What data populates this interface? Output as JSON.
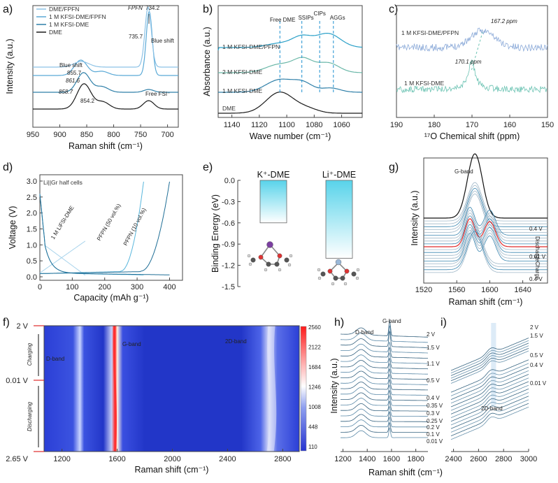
{
  "colors": {
    "dme_fpfn": "#8cc2e6",
    "kfsi_dme_fpfn": "#5aa9d6",
    "kfsi_dme": "#2e7fa8",
    "dme": "#1a1a1a",
    "axis": "#444444",
    "dashed": "#1e90d0",
    "nmr_top": "#8aa9d8",
    "nmr_bottom": "#6cc3b3",
    "red_mark": "#e02a2a",
    "cyan_box": "#58d3ea"
  },
  "panels": {
    "a": {
      "label": "a)"
    },
    "b": {
      "label": "b)"
    },
    "c": {
      "label": "c)"
    },
    "d": {
      "label": "d)"
    },
    "e": {
      "label": "e)"
    },
    "f": {
      "label": "f)"
    },
    "g": {
      "label": "g)"
    },
    "h": {
      "label": "h)"
    },
    "i": {
      "label": "i)"
    }
  },
  "chart_data": [
    {
      "panel": "a",
      "type": "line",
      "xlabel": "Raman shift (cm⁻¹)",
      "ylabel": "Intensity (a.u.)",
      "xlim": [
        950,
        680
      ],
      "xticks": [
        "950",
        "900",
        "850",
        "800",
        "750",
        "700"
      ],
      "series": [
        {
          "name": "DME/FPFN",
          "peaks": [
            735.7
          ]
        },
        {
          "name": "1 M KFSI-DME/FPFN",
          "peaks": [
            861.6,
            734.2
          ]
        },
        {
          "name": "1 M KFSI-DME",
          "peaks": [
            855.7
          ]
        },
        {
          "name": "DME",
          "peaks": [
            858.7,
            854.2
          ]
        }
      ],
      "annotations": [
        "FPFN",
        "734.2",
        "735.7",
        "Blue shift",
        "Blue shift",
        "855.7",
        "861.6",
        "858.7",
        "854.2",
        "Free FSI⁻"
      ]
    },
    {
      "panel": "b",
      "type": "line",
      "xlabel": "Wave number (cm⁻¹)",
      "ylabel": "Absorbance (a.u.)",
      "xlim": [
        1150,
        1045
      ],
      "xticks": [
        "1140",
        "1120",
        "1100",
        "1080",
        "1060"
      ],
      "series": [
        {
          "name": "1 M KFSI-DME/PFPN"
        },
        {
          "name": "2 M KFSI-DME"
        },
        {
          "name": "1 M KFSI-DME"
        },
        {
          "name": "DME"
        }
      ],
      "annotations": [
        "Free DME",
        "SSIPs",
        "CIPs",
        "AGGs"
      ],
      "dashed_x": [
        1105,
        1089,
        1076,
        1066
      ]
    },
    {
      "panel": "c",
      "type": "line",
      "xlabel": "¹⁷O Chemical shift (ppm)",
      "xlim": [
        190,
        150
      ],
      "xticks": [
        "190",
        "180",
        "170",
        "160",
        "150"
      ],
      "series": [
        {
          "name": "1 M KFSI-DME/PFPN",
          "peak": 167.2
        },
        {
          "name": "1 M KFSI-DME",
          "peak": 170.1
        }
      ],
      "annotations": [
        "167.2 ppm",
        "170.1 ppm"
      ]
    },
    {
      "panel": "d",
      "type": "line",
      "title": "Li||Gr half cells",
      "xlabel": "Capacity (mAh g⁻¹)",
      "ylabel": "Voltage (V)",
      "xlim": [
        0,
        440
      ],
      "ylim": [
        0,
        3.0
      ],
      "xticks": [
        "0",
        "100",
        "200",
        "300",
        "400"
      ],
      "yticks": [
        "0.0",
        "0.5",
        "1.0",
        "1.5",
        "2.0",
        "2.5",
        "3.0"
      ],
      "series": [
        {
          "name": "1 M LiFSI-DME"
        },
        {
          "name": "PFPN (50 vol.%)"
        },
        {
          "name": "PFPN (10 vol.%)"
        }
      ]
    },
    {
      "panel": "e",
      "type": "bar",
      "ylabel": "Binding Energy (eV)",
      "ylim": [
        -1.5,
        0.0
      ],
      "yticks": [
        "0.0",
        "-0.3",
        "-0.6",
        "-0.9",
        "-1.2",
        "-1.5"
      ],
      "categories": [
        "K⁺-DME",
        "Li⁺-DME"
      ],
      "values": [
        -0.6,
        -1.1
      ]
    },
    {
      "panel": "f",
      "type": "heatmap",
      "xlabel": "Raman shift (cm⁻¹)",
      "xlim": [
        1070,
        2920
      ],
      "xticks": [
        "1200",
        "1600",
        "2000",
        "2400",
        "2800"
      ],
      "yticks": [
        "2 V",
        "0.01 V",
        "2.65 V"
      ],
      "segment_labels": [
        "Charging",
        "Discharging"
      ],
      "band_labels": [
        "D-band",
        "G-band",
        "2D-band"
      ],
      "colorbar": [
        "2560",
        "2122",
        "1684",
        "1246",
        "1008",
        "448",
        "110"
      ]
    },
    {
      "panel": "g",
      "type": "line",
      "xlabel": "Raman shift (cm⁻¹)",
      "ylabel": "Intensity (a.u.)",
      "xlim": [
        1520,
        1670
      ],
      "xticks": [
        "1520",
        "1560",
        "1600",
        "1640"
      ],
      "annotations": [
        "G-band",
        "0.4 V",
        "Discharge",
        "0.01 V",
        "Charge",
        "0.4 V"
      ]
    },
    {
      "panel": "h",
      "type": "line",
      "xlabel": "Raman shift (cm⁻¹)",
      "ylabel": "Intensity (a.u.)",
      "xlim": [
        1180,
        1900
      ],
      "xticks": [
        "1200",
        "1400",
        "1600",
        "1800"
      ],
      "annotations": [
        "D-band",
        "G-band"
      ],
      "curve_labels": [
        "2 V",
        "1.5 V",
        "1.1 V",
        "0.5 V",
        "0.4 V",
        "0.35 V",
        "0.3 V",
        "0.25 V",
        "0.2 V",
        "0.1 V",
        "0.01 V"
      ]
    },
    {
      "panel": "i",
      "type": "line",
      "xlim": [
        2380,
        3000
      ],
      "xticks": [
        "2400",
        "2600",
        "2800",
        "3000"
      ],
      "annotations": [
        "2D-band"
      ],
      "curve_labels": [
        "2 V",
        "1.5 V",
        "0.5 V",
        "0.4 V",
        "0.01 V"
      ]
    }
  ]
}
